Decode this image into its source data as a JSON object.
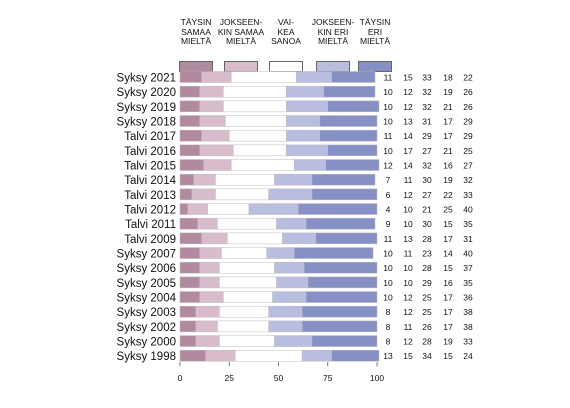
{
  "chart_data": {
    "type": "bar",
    "orientation": "horizontal",
    "stacked": true,
    "title": "",
    "xlabel": "",
    "ylabel": "",
    "xlim": [
      0,
      100
    ],
    "xticks": [
      0,
      25,
      50,
      75,
      100
    ],
    "grid": false,
    "legend_position": "top",
    "categories": [
      "Syksy 2021",
      "Syksy 2020",
      "Syksy 2019",
      "Syksy 2018",
      "Talvi 2017",
      "Talvi 2016",
      "Talvi 2015",
      "Talvi 2014",
      "Talvi 2013",
      "Talvi 2012",
      "Talvi 2011",
      "Talvi 2009",
      "Syksy 2007",
      "Syksy 2006",
      "Syksy 2005",
      "Syksy 2004",
      "Syksy 2003",
      "Syksy 2002",
      "Syksy 2000",
      "Syksy 1998"
    ],
    "series": [
      {
        "name": "TÄYSIN SAMAA MIELTÄ",
        "color": "#b18aa0",
        "values": [
          11,
          10,
          10,
          10,
          11,
          10,
          12,
          7,
          6,
          4,
          9,
          11,
          10,
          10,
          10,
          10,
          8,
          8,
          8,
          13
        ]
      },
      {
        "name": "JOKSEENKIN SAMAA MIELTÄ",
        "color": "#d8bccb",
        "values": [
          15,
          12,
          12,
          13,
          14,
          17,
          14,
          11,
          12,
          10,
          10,
          13,
          11,
          10,
          10,
          12,
          12,
          11,
          12,
          15
        ]
      },
      {
        "name": "VAIKEA SANOA",
        "color": "#ffffff",
        "values": [
          33,
          32,
          32,
          31,
          29,
          27,
          32,
          30,
          27,
          21,
          30,
          28,
          23,
          28,
          29,
          25,
          25,
          26,
          28,
          34
        ]
      },
      {
        "name": "JOKSEENKIN ERI MIELTÄ",
        "color": "#b9bde0",
        "values": [
          18,
          19,
          21,
          17,
          17,
          21,
          16,
          19,
          22,
          25,
          15,
          17,
          14,
          15,
          16,
          17,
          17,
          17,
          19,
          15
        ]
      },
      {
        "name": "TÄYSIN ERI MIELTÄ",
        "color": "#8790c4",
        "values": [
          22,
          26,
          26,
          29,
          29,
          25,
          27,
          32,
          33,
          40,
          35,
          31,
          40,
          37,
          35,
          36,
          38,
          38,
          33,
          24
        ]
      }
    ]
  }
}
